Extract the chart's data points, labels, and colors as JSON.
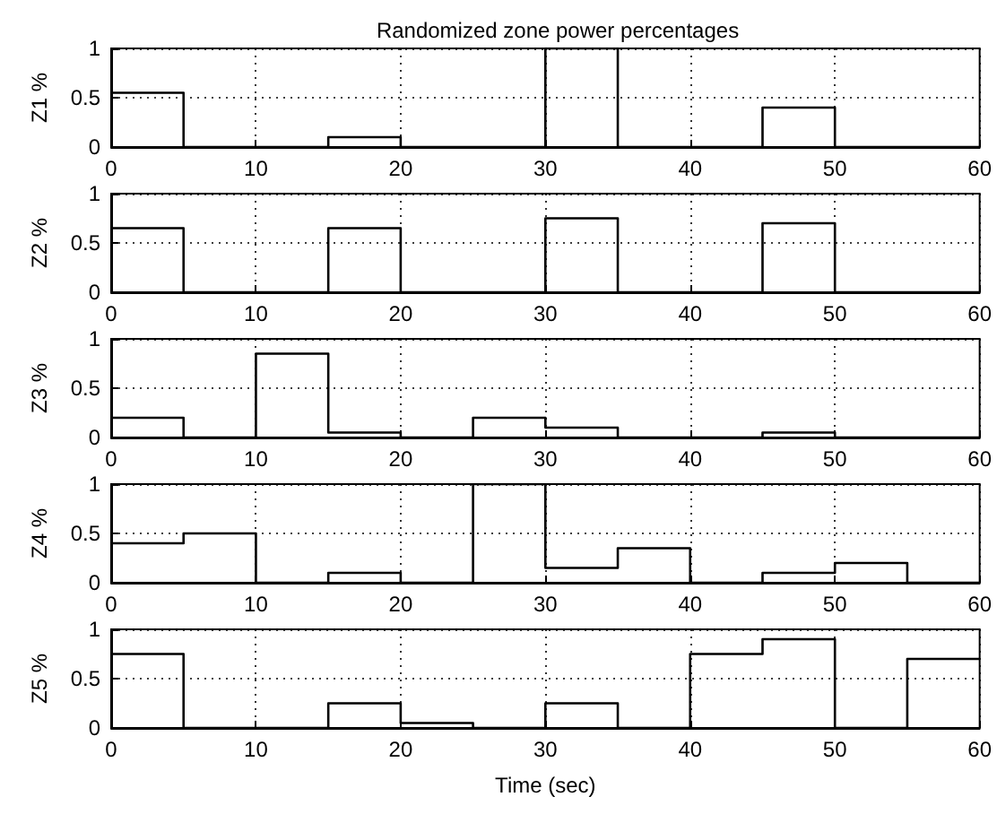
{
  "chart_data": [
    {
      "type": "step",
      "title": "Randomized zone power percentages",
      "ylabel": "Z1 %",
      "x": [
        0,
        5,
        10,
        15,
        20,
        25,
        30,
        35,
        40,
        45,
        50,
        55,
        60
      ],
      "xlim": [
        0,
        60
      ],
      "xticks": [
        0,
        10,
        20,
        30,
        40,
        50,
        60
      ],
      "ylim": [
        0,
        1
      ],
      "yticks": [
        0,
        0.5,
        1
      ],
      "grid": true,
      "series": [
        {
          "color": "#000000",
          "values": [
            0.55,
            0,
            0,
            0.1,
            0,
            0,
            1,
            0,
            0,
            0.4,
            0,
            0,
            0
          ]
        }
      ]
    },
    {
      "type": "step",
      "ylabel": "Z2 %",
      "x": [
        0,
        5,
        10,
        15,
        20,
        25,
        30,
        35,
        40,
        45,
        50,
        55,
        60
      ],
      "xlim": [
        0,
        60
      ],
      "xticks": [
        0,
        10,
        20,
        30,
        40,
        50,
        60
      ],
      "ylim": [
        0,
        1
      ],
      "yticks": [
        0,
        0.5,
        1
      ],
      "grid": true,
      "series": [
        {
          "color": "#000000",
          "values": [
            0.65,
            0,
            0,
            0.65,
            0,
            0,
            0.75,
            0,
            0,
            0.7,
            0,
            0,
            0
          ]
        }
      ]
    },
    {
      "type": "step",
      "ylabel": "Z3 %",
      "x": [
        0,
        5,
        10,
        15,
        20,
        25,
        30,
        35,
        40,
        45,
        50,
        55,
        60
      ],
      "xlim": [
        0,
        60
      ],
      "xticks": [
        0,
        10,
        20,
        30,
        40,
        50,
        60
      ],
      "ylim": [
        0,
        1
      ],
      "yticks": [
        0,
        0.5,
        1
      ],
      "grid": true,
      "series": [
        {
          "color": "#000000",
          "values": [
            0.2,
            0,
            0.85,
            0.05,
            0,
            0.2,
            0.1,
            0,
            0,
            0.05,
            0,
            0,
            0
          ]
        }
      ]
    },
    {
      "type": "step",
      "ylabel": "Z4 %",
      "x": [
        0,
        5,
        10,
        15,
        20,
        25,
        30,
        35,
        40,
        45,
        50,
        55,
        60
      ],
      "xlim": [
        0,
        60
      ],
      "xticks": [
        0,
        10,
        20,
        30,
        40,
        50,
        60
      ],
      "ylim": [
        0,
        1
      ],
      "yticks": [
        0,
        0.5,
        1
      ],
      "grid": true,
      "series": [
        {
          "color": "#000000",
          "values": [
            0.4,
            0.5,
            0,
            0.1,
            0,
            1,
            0.15,
            0.35,
            0,
            0.1,
            0.2,
            0,
            0
          ]
        }
      ]
    },
    {
      "type": "step",
      "ylabel": "Z5 %",
      "xlabel": "Time (sec)",
      "x": [
        0,
        5,
        10,
        15,
        20,
        25,
        30,
        35,
        40,
        45,
        50,
        55,
        60
      ],
      "xlim": [
        0,
        60
      ],
      "xticks": [
        0,
        10,
        20,
        30,
        40,
        50,
        60
      ],
      "ylim": [
        0,
        1
      ],
      "yticks": [
        0,
        0.5,
        1
      ],
      "grid": true,
      "series": [
        {
          "color": "#000000",
          "values": [
            0.75,
            0,
            0,
            0.25,
            0.05,
            0,
            0.25,
            0,
            0.75,
            0.9,
            0,
            0.7,
            0.7
          ]
        }
      ]
    }
  ]
}
